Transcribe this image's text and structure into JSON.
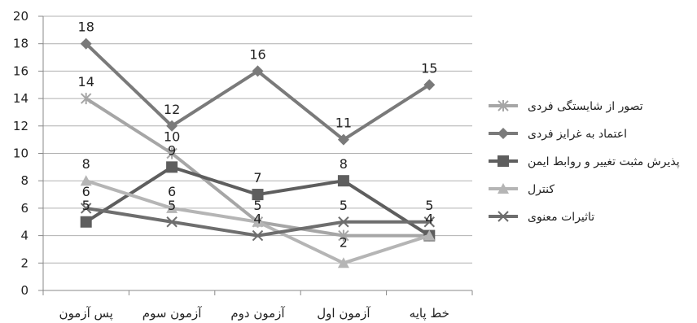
{
  "chart_data": {
    "type": "line",
    "categories": [
      "پس آزمون",
      "آزمون سوم",
      "آزمون دوم",
      "آزمون اول",
      "خط پایه"
    ],
    "ylim": [
      0,
      20
    ],
    "yticks": [
      0,
      2,
      4,
      6,
      8,
      10,
      12,
      14,
      16,
      18,
      20
    ],
    "grid": true,
    "legend_position": "right",
    "series": [
      {
        "name": "تصور از شایستگی فردی",
        "values": [
          14,
          10,
          5,
          4,
          4
        ],
        "color": "#a6a6a6",
        "marker": "asterisk",
        "labels": [
          true,
          true,
          false,
          false,
          false
        ]
      },
      {
        "name": "اعتماد به غرایز فردی",
        "values": [
          18,
          12,
          16,
          11,
          15
        ],
        "color": "#7a7a7a",
        "marker": "diamond",
        "labels": [
          true,
          true,
          true,
          true,
          true
        ]
      },
      {
        "name": "پذیرش مثبت تغییر و روابط ایمن",
        "values": [
          5,
          9,
          7,
          8,
          4
        ],
        "color": "#5e5e5e",
        "marker": "square",
        "labels": [
          true,
          true,
          true,
          true,
          true
        ]
      },
      {
        "name": "کنترل",
        "values": [
          8,
          6,
          5,
          2,
          4
        ],
        "color": "#b5b5b5",
        "marker": "triangle",
        "labels": [
          true,
          true,
          true,
          true,
          false
        ]
      },
      {
        "name": "تاثیرات معنوی",
        "values": [
          6,
          5,
          4,
          5,
          5
        ],
        "color": "#6e6e6e",
        "marker": "x",
        "labels": [
          true,
          true,
          true,
          true,
          true
        ]
      }
    ]
  }
}
